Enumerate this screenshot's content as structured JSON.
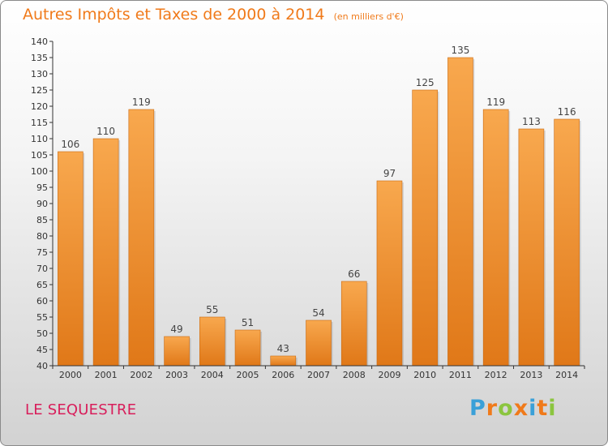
{
  "title": "Autres Impôts et Taxes de 2000 à 2014",
  "subtitle": "(en milliers d'€)",
  "commune": "LE SEQUESTRE",
  "logo": {
    "text": "Proxiti",
    "letter_colors": [
      "#3aa0d8",
      "#f07a1a",
      "#8bc53f",
      "#f07a1a",
      "#3aa0d8",
      "#f07a1a",
      "#8bc53f"
    ]
  },
  "colors": {
    "bar_light": "#f8a84e",
    "bar_dark": "#e07818",
    "axis": "#333333",
    "title": "#f07a1a",
    "commune": "#d81e5b"
  },
  "chart_data": {
    "type": "bar",
    "categories": [
      "2000",
      "2001",
      "2002",
      "2003",
      "2004",
      "2005",
      "2006",
      "2007",
      "2008",
      "2009",
      "2010",
      "2011",
      "2012",
      "2013",
      "2014"
    ],
    "values": [
      106,
      110,
      119,
      49,
      55,
      51,
      43,
      54,
      66,
      97,
      125,
      135,
      119,
      113,
      116
    ],
    "title": "Autres Impôts et Taxes de 2000 à 2014",
    "ylabel": "(en milliers d'€)",
    "xlabel": "",
    "ylim": [
      40,
      140
    ],
    "ytick_step": 5,
    "grid": false
  }
}
